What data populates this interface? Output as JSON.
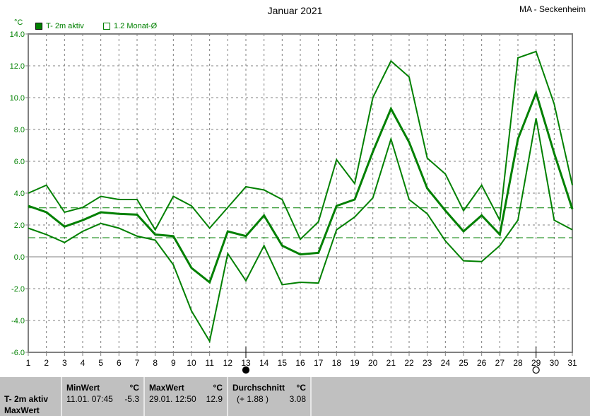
{
  "header": {
    "title": "Januar 2021",
    "station": "MA - Seckenheim",
    "unit": "°C"
  },
  "legend": [
    {
      "label": "T- 2m aktiv",
      "marker": "filled-square"
    },
    {
      "label": "1.2 Monat-Ø",
      "marker": "open-square"
    }
  ],
  "colors": {
    "series": "#008000",
    "grid": "#808080",
    "reference": "#008000"
  },
  "chart_data": {
    "type": "line",
    "title": "Januar 2021",
    "ylabel": "°C",
    "ylim": [
      -6,
      14
    ],
    "yticks": [
      "14.0",
      "12.0",
      "10.0",
      "8.0",
      "6.0",
      "4.0",
      "2.0",
      "0.0",
      "-2.0",
      "-4.0",
      "-6.0"
    ],
    "x": [
      1,
      2,
      3,
      4,
      5,
      6,
      7,
      8,
      9,
      10,
      11,
      12,
      13,
      14,
      15,
      16,
      17,
      18,
      19,
      20,
      21,
      22,
      23,
      24,
      25,
      26,
      27,
      28,
      29,
      30,
      31
    ],
    "grid": true,
    "series": [
      {
        "role": "daily-max",
        "values": [
          4.0,
          4.5,
          2.8,
          3.1,
          3.8,
          3.6,
          3.6,
          1.7,
          3.8,
          3.2,
          1.8,
          3.1,
          4.4,
          4.2,
          3.6,
          1.1,
          2.2,
          6.1,
          4.6,
          10.0,
          12.3,
          11.3,
          6.2,
          5.2,
          2.9,
          4.5,
          2.3,
          12.5,
          12.9,
          9.6,
          4.5
        ]
      },
      {
        "role": "daily-mean",
        "values": [
          3.2,
          2.8,
          1.9,
          2.3,
          2.8,
          2.7,
          2.65,
          1.4,
          1.3,
          -0.7,
          -1.6,
          1.6,
          1.3,
          2.6,
          0.7,
          0.15,
          0.25,
          3.2,
          3.6,
          6.6,
          9.3,
          7.2,
          4.3,
          2.9,
          1.6,
          2.6,
          1.4,
          7.4,
          10.3,
          6.5,
          3.0
        ]
      },
      {
        "role": "daily-min",
        "values": [
          1.8,
          1.4,
          0.9,
          1.6,
          2.1,
          1.8,
          1.3,
          1.05,
          -0.5,
          -3.4,
          -5.3,
          0.2,
          -1.5,
          0.7,
          -1.75,
          -1.6,
          -1.65,
          1.7,
          2.5,
          3.7,
          7.4,
          3.6,
          2.7,
          1.0,
          -0.25,
          -0.3,
          0.7,
          2.3,
          8.7,
          2.3,
          1.7
        ]
      }
    ],
    "reference_lines": [
      {
        "value": 3.08,
        "style": "dashed"
      },
      {
        "value": 1.2,
        "style": "dashed"
      }
    ],
    "moon_phases": [
      {
        "day": 13,
        "phase": "new-moon"
      },
      {
        "day": 29,
        "phase": "full-moon"
      }
    ]
  },
  "stats": {
    "row_label_1": "T- 2m aktiv",
    "row_label_2": "MaxWert",
    "min": {
      "label": "MinWert",
      "unit": "°C",
      "date": "11.01.  07:45",
      "value": "-5.3"
    },
    "max": {
      "label": "MaxWert",
      "unit": "°C",
      "date": "29.01.  12:50",
      "value": "12.9"
    },
    "avg": {
      "label": "Durchschnitt",
      "unit": "°C",
      "diff": "(+ 1.88 )",
      "value": "3.08"
    }
  }
}
